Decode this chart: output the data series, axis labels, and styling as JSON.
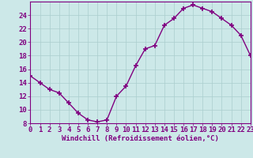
{
  "x": [
    0,
    1,
    2,
    3,
    4,
    5,
    6,
    7,
    8,
    9,
    10,
    11,
    12,
    13,
    14,
    15,
    16,
    17,
    18,
    19,
    20,
    21,
    22,
    23
  ],
  "y": [
    15.0,
    14.0,
    13.0,
    12.5,
    11.0,
    9.5,
    8.5,
    8.2,
    8.5,
    12.0,
    13.5,
    16.5,
    19.0,
    19.5,
    22.5,
    23.5,
    25.0,
    25.5,
    25.0,
    24.5,
    23.5,
    22.5,
    21.0,
    18.0
  ],
  "line_color": "#800080",
  "marker": "+",
  "marker_size": 4,
  "bg_color": "#cce8e8",
  "grid_color": "#aacece",
  "spine_color": "#800080",
  "tick_color": "#800080",
  "label_color": "#800080",
  "xlabel": "Windchill (Refroidissement éolien,°C)",
  "ylim": [
    8,
    26
  ],
  "xlim": [
    0,
    23
  ],
  "yticks": [
    8,
    10,
    12,
    14,
    16,
    18,
    20,
    22,
    24
  ],
  "xticks": [
    0,
    1,
    2,
    3,
    4,
    5,
    6,
    7,
    8,
    9,
    10,
    11,
    12,
    13,
    14,
    15,
    16,
    17,
    18,
    19,
    20,
    21,
    22,
    23
  ],
  "font_size": 6.5
}
